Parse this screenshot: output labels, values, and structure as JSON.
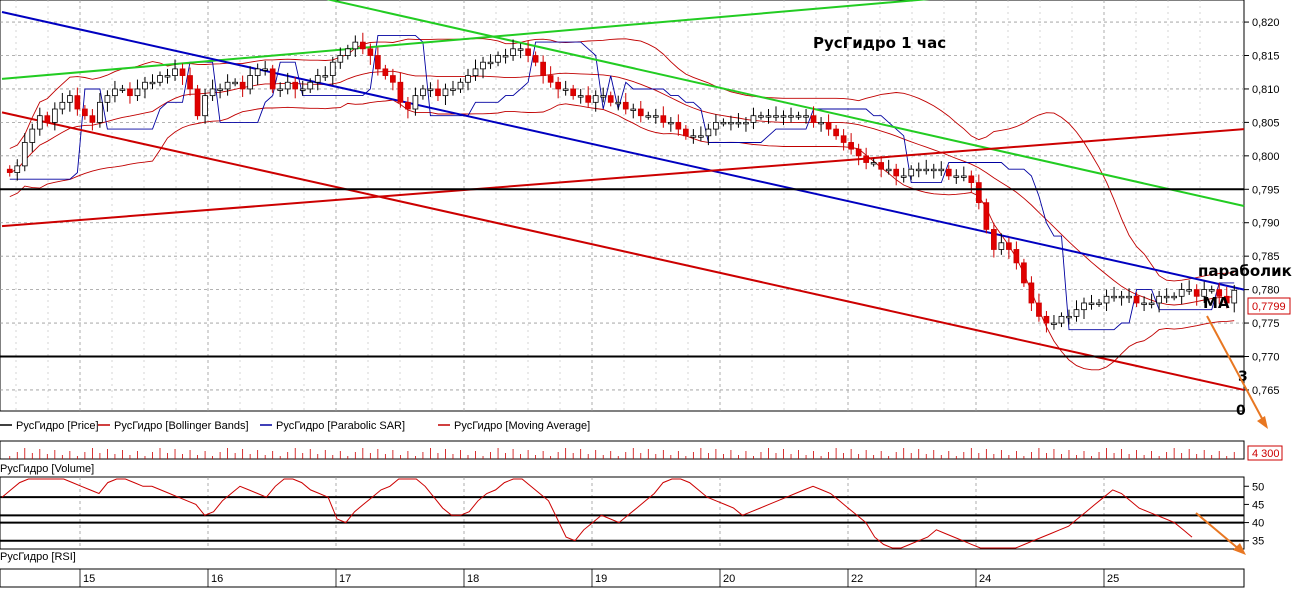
{
  "chart_data": [
    {
      "type": "candlestick",
      "title": "РусГидро   1 час",
      "ylim": [
        0.762,
        0.823
      ],
      "y_ticks": [
        "0,765",
        "0,770",
        "0,775",
        "0,780",
        "0,785",
        "0,790",
        "0,795",
        "0,800",
        "0,805",
        "0,810",
        "0,815",
        "0,820"
      ],
      "last_price_label": "0,7799",
      "x_ticks": [
        "15",
        "16",
        "17",
        "18",
        "19",
        "20",
        "22",
        "24",
        "25"
      ],
      "legend": [
        {
          "name": "РусГидро [Price]",
          "color": "#000000"
        },
        {
          "name": "РусГидро [Bollinger Bands]",
          "color": "#c00000"
        },
        {
          "name": "РусГидро [Parabolic SAR]",
          "color": "#0000a0"
        },
        {
          "name": "РусГидро [Moving Average]",
          "color": "#c00000"
        }
      ],
      "annotations": [
        "параболик",
        "МА",
        "3",
        "0"
      ],
      "horizontal_levels": [
        0.795,
        0.77
      ],
      "trend_lines": [
        {
          "color": "#22cc22",
          "points": [
            [
              0,
              0.8115
            ],
            [
              150,
              0.8235
            ]
          ]
        },
        {
          "color": "#22cc22",
          "points": [
            [
              52,
              0.8235
            ],
            [
              200,
              0.7925
            ]
          ]
        },
        {
          "color": "#0000c0",
          "points": [
            [
              0,
              0.8215
            ],
            [
              200,
              0.78
            ]
          ]
        },
        {
          "color": "#cc0000",
          "points": [
            [
              0,
              0.7895
            ],
            [
              200,
              0.804
            ]
          ]
        },
        {
          "color": "#cc0000",
          "points": [
            [
              0,
              0.8065
            ],
            [
              200,
              0.765
            ]
          ]
        }
      ],
      "closes": [
        0.7975,
        0.7985,
        0.802,
        0.804,
        0.806,
        0.805,
        0.807,
        0.808,
        0.809,
        0.807,
        0.806,
        0.805,
        0.808,
        0.809,
        0.81,
        0.81,
        0.809,
        0.81,
        0.811,
        0.811,
        0.812,
        0.812,
        0.813,
        0.812,
        0.81,
        0.806,
        0.809,
        0.81,
        0.81,
        0.811,
        0.811,
        0.81,
        0.812,
        0.813,
        0.813,
        0.81,
        0.81,
        0.811,
        0.81,
        0.81,
        0.811,
        0.812,
        0.812,
        0.814,
        0.815,
        0.816,
        0.817,
        0.816,
        0.815,
        0.813,
        0.812,
        0.811,
        0.808,
        0.807,
        0.809,
        0.81,
        0.81,
        0.809,
        0.81,
        0.81,
        0.811,
        0.812,
        0.813,
        0.814,
        0.814,
        0.815,
        0.815,
        0.816,
        0.816,
        0.815,
        0.814,
        0.812,
        0.811,
        0.81,
        0.81,
        0.809,
        0.809,
        0.808,
        0.809,
        0.809,
        0.808,
        0.808,
        0.807,
        0.807,
        0.806,
        0.806,
        0.806,
        0.805,
        0.805,
        0.804,
        0.803,
        0.803,
        0.803,
        0.804,
        0.805,
        0.805,
        0.805,
        0.805,
        0.805,
        0.806,
        0.806,
        0.806,
        0.806,
        0.806,
        0.806,
        0.806,
        0.806,
        0.805,
        0.805,
        0.804,
        0.803,
        0.802,
        0.801,
        0.8,
        0.799,
        0.799,
        0.798,
        0.798,
        0.797,
        0.797,
        0.798,
        0.798,
        0.798,
        0.798,
        0.798,
        0.797,
        0.797,
        0.797,
        0.796,
        0.793,
        0.789,
        0.786,
        0.787,
        0.786,
        0.784,
        0.781,
        0.778,
        0.776,
        0.775,
        0.775,
        0.776,
        0.776,
        0.777,
        0.778,
        0.778,
        0.778,
        0.779,
        0.779,
        0.779,
        0.779,
        0.778,
        0.778,
        0.778,
        0.779,
        0.779,
        0.779,
        0.78,
        0.78,
        0.779,
        0.78,
        0.78,
        0.779,
        0.778,
        0.7799
      ]
    },
    {
      "type": "bar",
      "title": "РусГидро [Volume]",
      "last_value_label": "4 300"
    },
    {
      "type": "line",
      "title": "РусГидро [RSI]",
      "y_ticks": [
        "35",
        "40",
        "45",
        "50"
      ],
      "ylim": [
        33,
        52
      ],
      "levels": [
        35,
        40,
        42,
        47
      ],
      "values": [
        47,
        49,
        51,
        52,
        53,
        54,
        55,
        52,
        51,
        50,
        49,
        48,
        51,
        52,
        53,
        51,
        50,
        50,
        49,
        48,
        47,
        46,
        45,
        42,
        43,
        46,
        48,
        50,
        49,
        48,
        47,
        50,
        52,
        53,
        51,
        49,
        48,
        47,
        41,
        40,
        43,
        45,
        47,
        49,
        50,
        52,
        53,
        52,
        50,
        47,
        44,
        42,
        42,
        43,
        46,
        48,
        49,
        51,
        52,
        53,
        50,
        48,
        46,
        41,
        36,
        35,
        38,
        40,
        42,
        41,
        40,
        42,
        44,
        46,
        48,
        51,
        52,
        53,
        51,
        49,
        47,
        46,
        45,
        44,
        42,
        43,
        44,
        45,
        46,
        47,
        48,
        49,
        50,
        49,
        48,
        46,
        44,
        42,
        40,
        36,
        34,
        33,
        33,
        34,
        35,
        36,
        38,
        37,
        36,
        35,
        34,
        33,
        32,
        32,
        33,
        33,
        34,
        35,
        36,
        37,
        38,
        39,
        41,
        43,
        45,
        47,
        49,
        48,
        46,
        44,
        43,
        42,
        41,
        40,
        38,
        36
      ]
    }
  ],
  "annotation_colors": {
    "arrow": "#e87722"
  }
}
